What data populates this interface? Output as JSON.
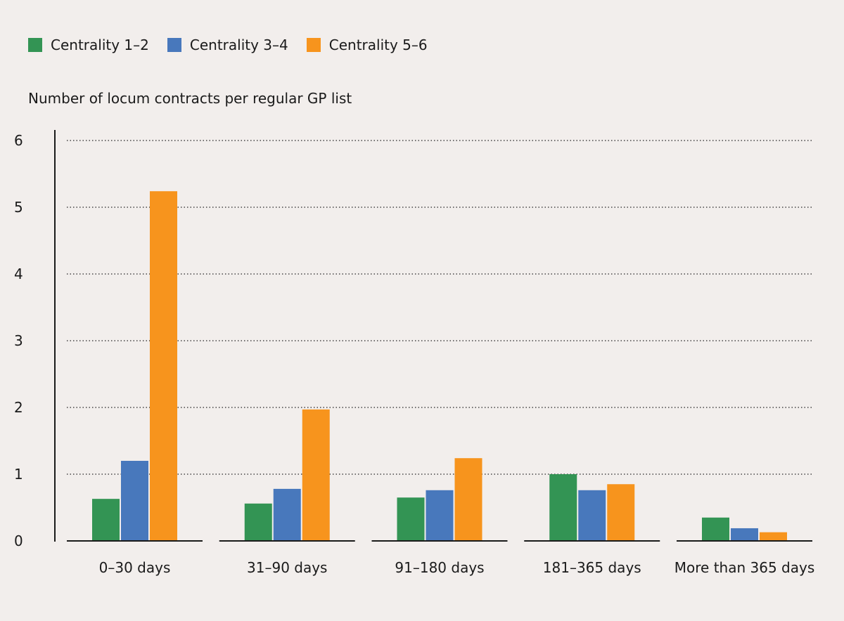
{
  "chart_data": {
    "type": "bar",
    "title": "",
    "xlabel": "",
    "ylabel": "Number of locum contracts per regular GP list",
    "ylim": [
      0,
      6
    ],
    "yticks": [
      "0",
      "1",
      "2",
      "3",
      "4",
      "5",
      "6"
    ],
    "grid": true,
    "legend_position": "top-left",
    "categories": [
      "0–30 days",
      "31–90 days",
      "91–180 days",
      "181–365 days",
      "More than 365 days"
    ],
    "series": [
      {
        "name": "Centrality 1–2",
        "color": "#339454",
        "values": [
          0.63,
          0.56,
          0.65,
          1.0,
          0.35
        ]
      },
      {
        "name": "Centrality 3–4",
        "color": "#4878bc",
        "values": [
          1.2,
          0.78,
          0.76,
          0.76,
          0.19
        ]
      },
      {
        "name": "Centrality  5–6",
        "color": "#f7941d",
        "values": [
          5.24,
          1.97,
          1.24,
          0.85,
          0.13
        ]
      }
    ]
  }
}
